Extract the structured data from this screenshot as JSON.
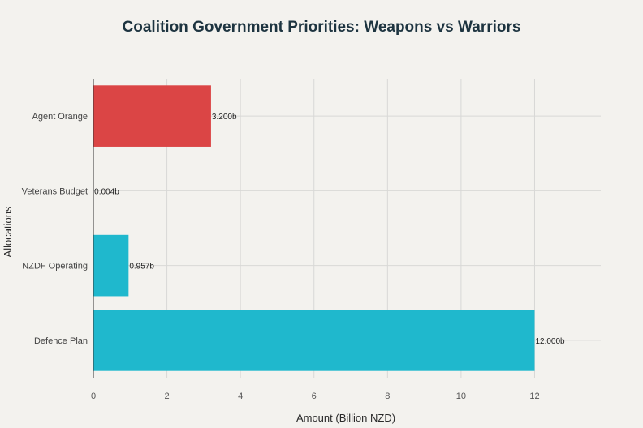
{
  "chart_data": {
    "type": "bar",
    "orientation": "horizontal",
    "title": "Coalition Government Priorities: Weapons vs Warriors",
    "xlabel": "Amount (Billion NZD)",
    "ylabel": "Allocations",
    "xlim": [
      0,
      13.8
    ],
    "xticks": [
      0,
      2,
      4,
      6,
      8,
      10,
      12
    ],
    "grid": true,
    "categories": [
      "Agent Orange",
      "Veterans Budget",
      "NZDF Operating",
      "Defence Plan"
    ],
    "values": [
      3.2,
      0.004,
      0.957,
      12.0
    ],
    "value_labels": [
      "3.200b",
      "0.004b",
      "0.957b",
      "12.000b"
    ],
    "colors": [
      "#db4545",
      "#1fb8cd",
      "#1fb8cd",
      "#1fb8cd"
    ]
  }
}
